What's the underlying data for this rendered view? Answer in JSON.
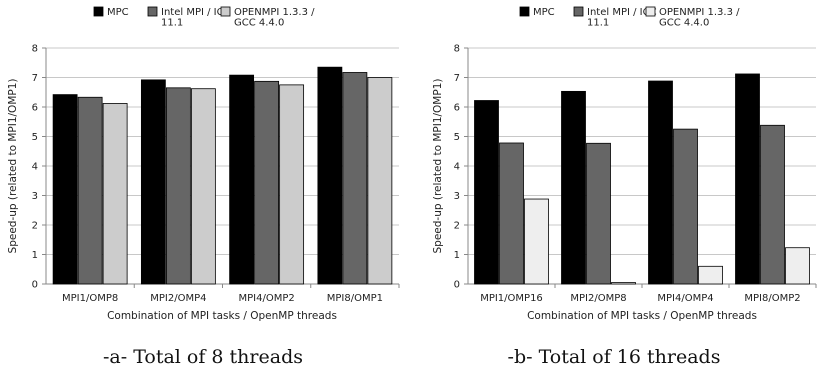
{
  "chart_data": [
    {
      "type": "bar",
      "caption": "-a- Total of 8 threads",
      "xlabel": "Combination of MPI tasks / OpenMP threads",
      "ylabel": "Speed-up (related to MPI1/OMP1)",
      "ylim": [
        0,
        8
      ],
      "yticks": [
        0,
        1,
        2,
        3,
        4,
        5,
        6,
        7,
        8
      ],
      "grid": true,
      "legend_position": "top",
      "categories": [
        "MPI1/OMP8",
        "MPI2/OMP4",
        "MPI4/OMP2",
        "MPI8/OMP1"
      ],
      "series": [
        {
          "name": [
            "MPC"
          ],
          "color": "#000000",
          "values": [
            6.42,
            6.92,
            7.08,
            7.35
          ]
        },
        {
          "name": [
            "Intel MPI / ICC",
            "11.1"
          ],
          "color": "#666666",
          "values": [
            6.33,
            6.65,
            6.87,
            7.17
          ]
        },
        {
          "name": [
            "OPENMPI 1.3.3 /",
            "GCC 4.4.0"
          ],
          "color": "#cccccc",
          "values": [
            6.12,
            6.62,
            6.75,
            7.0
          ]
        }
      ]
    },
    {
      "type": "bar",
      "caption": "-b- Total of 16 threads",
      "xlabel": "Combination of MPI tasks / OpenMP threads",
      "ylabel": "Speed-up (related to MPI1/OMP1)",
      "ylim": [
        0,
        8
      ],
      "yticks": [
        0,
        1,
        2,
        3,
        4,
        5,
        6,
        7,
        8
      ],
      "grid": true,
      "legend_position": "top",
      "categories": [
        "MPI1/OMP16",
        "MPI2/OMP8",
        "MPI4/OMP4",
        "MPI8/OMP2"
      ],
      "series": [
        {
          "name": [
            "MPC"
          ],
          "color": "#000000",
          "values": [
            6.22,
            6.53,
            6.88,
            7.12
          ]
        },
        {
          "name": [
            "Intel MPI / ICC",
            "11.1"
          ],
          "color": "#666666",
          "values": [
            4.78,
            4.77,
            5.25,
            5.38
          ]
        },
        {
          "name": [
            "OPENMPI 1.3.3 /",
            "GCC 4.4.0"
          ],
          "color": "#eeeeee",
          "values": [
            2.88,
            0.05,
            0.6,
            1.23
          ]
        }
      ]
    }
  ]
}
